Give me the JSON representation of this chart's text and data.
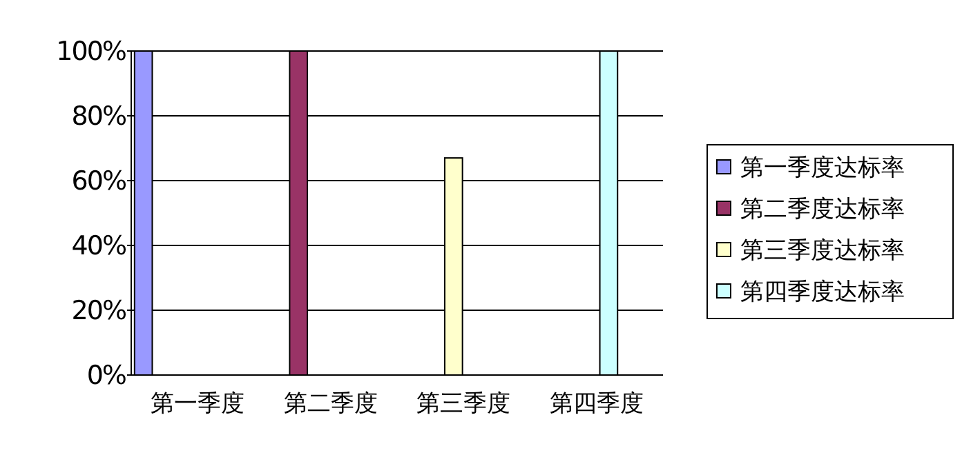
{
  "chart_data": {
    "type": "bar",
    "categories": [
      "第一季度",
      "第二季度",
      "第三季度",
      "第四季度"
    ],
    "series": [
      {
        "name": "第一季度达标率",
        "color": "#9999ff",
        "values": [
          100,
          0,
          0,
          0
        ]
      },
      {
        "name": "第二季度达标率",
        "color": "#993366",
        "values": [
          0,
          100,
          0,
          0
        ]
      },
      {
        "name": "第三季度达标率",
        "color": "#ffffcc",
        "values": [
          0,
          0,
          67,
          0
        ]
      },
      {
        "name": "第四季度达标率",
        "color": "#ccffff",
        "values": [
          0,
          0,
          0,
          100
        ]
      }
    ],
    "ylim": [
      0,
      100
    ],
    "yticks": [
      {
        "value": 0,
        "label": "0%"
      },
      {
        "value": 20,
        "label": "20%"
      },
      {
        "value": 40,
        "label": "40%"
      },
      {
        "value": 60,
        "label": "60%"
      },
      {
        "value": 80,
        "label": "80%"
      },
      {
        "value": 100,
        "label": "100%"
      }
    ],
    "grid": "y",
    "legend": "right"
  }
}
